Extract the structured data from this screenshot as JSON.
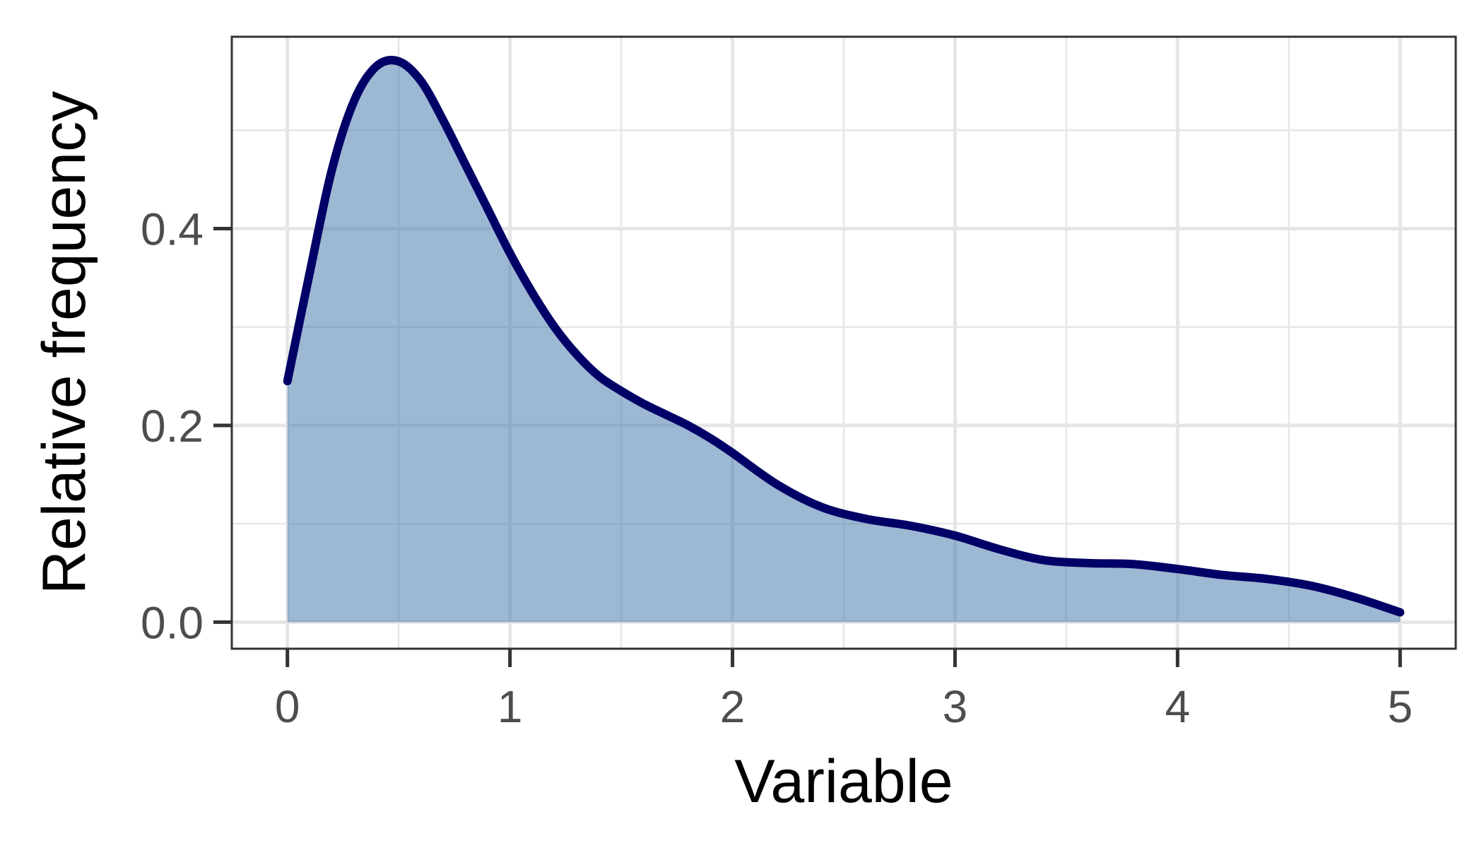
{
  "chart_data": {
    "type": "area",
    "title": "",
    "xlabel": "Variable",
    "ylabel": "Relative frequency",
    "xlim": [
      -0.25,
      5.25
    ],
    "ylim": [
      -0.027,
      0.595
    ],
    "x_ticks": [
      {
        "value": 0,
        "label": "0"
      },
      {
        "value": 1,
        "label": "1"
      },
      {
        "value": 2,
        "label": "2"
      },
      {
        "value": 3,
        "label": "3"
      },
      {
        "value": 4,
        "label": "4"
      },
      {
        "value": 5,
        "label": "5"
      }
    ],
    "y_ticks": [
      {
        "value": 0.0,
        "label": "0.0"
      },
      {
        "value": 0.2,
        "label": "0.2"
      },
      {
        "value": 0.4,
        "label": "0.4"
      }
    ],
    "x_minor_gridlines": [
      0.5,
      1.5,
      2.5,
      3.5,
      4.5
    ],
    "y_minor_gridlines": [
      0.1,
      0.3,
      0.5
    ],
    "grid": true,
    "series": [
      {
        "x": [
          0,
          0.1,
          0.2,
          0.3,
          0.4,
          0.5,
          0.6,
          0.7,
          0.8,
          0.9,
          1.0,
          1.1,
          1.2,
          1.3,
          1.4,
          1.5,
          1.6,
          1.7,
          1.8,
          1.9,
          2.0,
          2.2,
          2.4,
          2.6,
          2.8,
          3.0,
          3.2,
          3.4,
          3.6,
          3.8,
          4.0,
          4.2,
          4.4,
          4.6,
          4.8,
          5.0
        ],
        "y": [
          0.245,
          0.355,
          0.46,
          0.53,
          0.565,
          0.57,
          0.55,
          0.51,
          0.465,
          0.42,
          0.375,
          0.335,
          0.3,
          0.272,
          0.25,
          0.235,
          0.222,
          0.211,
          0.2,
          0.187,
          0.172,
          0.14,
          0.117,
          0.105,
          0.098,
          0.088,
          0.074,
          0.063,
          0.06,
          0.059,
          0.054,
          0.048,
          0.044,
          0.037,
          0.025,
          0.01
        ]
      }
    ],
    "colors": {
      "line": "#000066",
      "fill": "#4477aa",
      "fill_opacity": 0.52,
      "grid": "#e6e6e6",
      "panel_border": "#333333",
      "tick": "#333333",
      "tick_label": "#4d4d4d",
      "axis_title": "#000000",
      "background": "#ffffff"
    }
  }
}
